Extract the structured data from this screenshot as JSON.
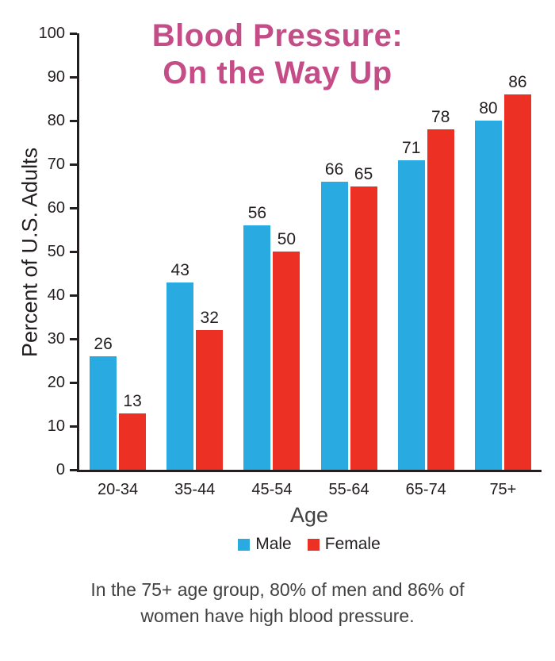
{
  "chart_data": {
    "type": "bar",
    "title": "Blood Pressure: On the Way Up",
    "title_lines": [
      "Blood Pressure:",
      "On the Way Up"
    ],
    "xlabel": "Age",
    "ylabel": "Percent of U.S. Adults",
    "ylim": [
      0,
      100
    ],
    "yticks": [
      0,
      10,
      20,
      30,
      40,
      50,
      60,
      70,
      80,
      90,
      100
    ],
    "categories": [
      "20-34",
      "35-44",
      "45-54",
      "55-64",
      "65-74",
      "75+"
    ],
    "series": [
      {
        "name": "Male",
        "color": "#29abe2",
        "values": [
          26,
          43,
          56,
          66,
          71,
          80
        ]
      },
      {
        "name": "Female",
        "color": "#ed3024",
        "values": [
          13,
          32,
          50,
          65,
          78,
          86
        ]
      }
    ],
    "grid": false,
    "legend_position": "bottom",
    "value_labels": true
  },
  "caption": {
    "lines": [
      "In the 75+ age group, 80% of men and 86% of",
      "women have high blood pressure."
    ]
  },
  "colors": {
    "title": "#c44d88",
    "axis": "#231f20",
    "text": "#231f20",
    "caption": "#414042"
  }
}
